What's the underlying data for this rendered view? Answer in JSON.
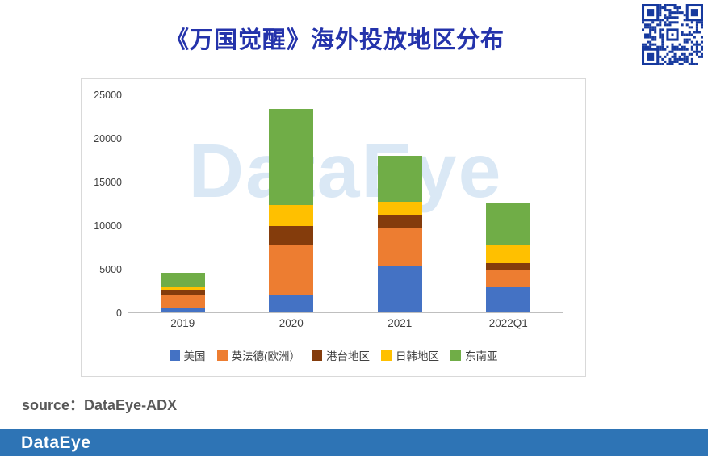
{
  "header": {
    "title": "《万国觉醒》海外投放地区分布"
  },
  "chart_data": {
    "type": "bar",
    "stacked": true,
    "title": "《万国觉醒》海外投放地区分布",
    "categories": [
      "2019",
      "2020",
      "2021",
      "2022Q1"
    ],
    "series": [
      {
        "name": "美国",
        "color": "#4472C4",
        "values": [
          500,
          2000,
          5400,
          3000
        ]
      },
      {
        "name": "英法德(欧洲）",
        "color": "#ED7D31",
        "values": [
          1500,
          5700,
          4300,
          1900
        ]
      },
      {
        "name": "港台地区",
        "color": "#843C0C",
        "values": [
          600,
          2200,
          1500,
          800
        ]
      },
      {
        "name": "日韩地区",
        "color": "#FFC000",
        "values": [
          400,
          2400,
          1500,
          2000
        ]
      },
      {
        "name": "东南亚",
        "color": "#70AD47",
        "values": [
          1500,
          11000,
          5300,
          4900
        ]
      }
    ],
    "ylim": [
      0,
      25000
    ],
    "yticks": [
      0,
      5000,
      10000,
      15000,
      20000,
      25000
    ],
    "grid": false,
    "legend_position": "bottom",
    "watermark": "DataEye"
  },
  "footer": {
    "source_prefix": "source：",
    "source_value": "DataEye-ADX",
    "logo": "DataEye"
  },
  "colors": {
    "title": "#2433AB",
    "footer_bar": "#2E74B5",
    "qr": "#16399E",
    "watermark": "#BDD7EE",
    "axis_text": "#404040"
  }
}
